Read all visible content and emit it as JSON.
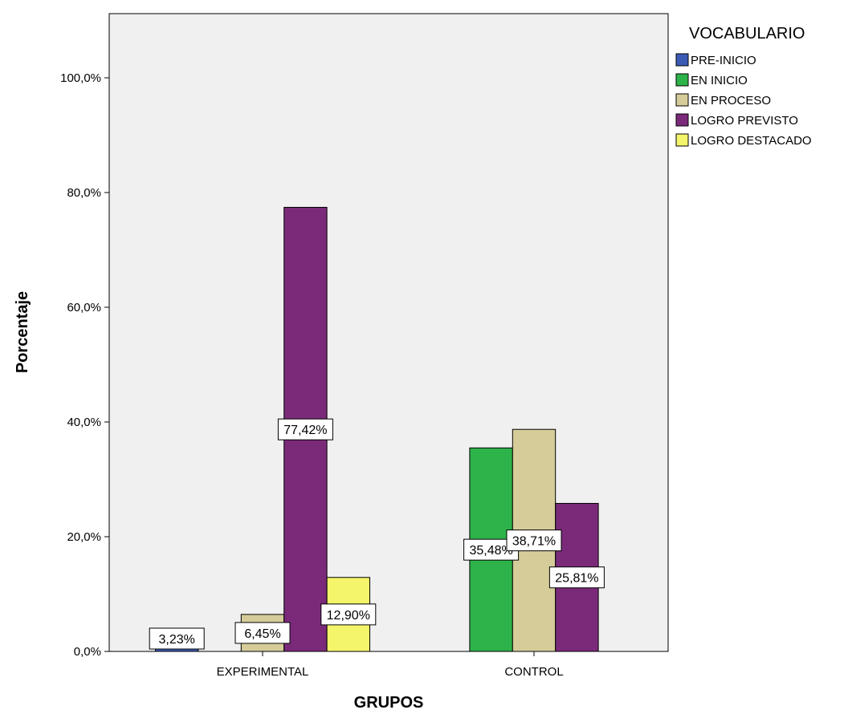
{
  "chart_data": {
    "type": "bar",
    "categories": [
      "EXPERIMENTAL",
      "CONTROL"
    ],
    "xlabel": "GRUPOS",
    "ylabel": "Porcentaje",
    "ylim": [
      0,
      100
    ],
    "yticks": [
      "0,0%",
      "20,0%",
      "40,0%",
      "60,0%",
      "80,0%",
      "100,0%"
    ],
    "grid": false,
    "legend_title": "VOCABULARIO",
    "legend_position": "top-right",
    "series": [
      {
        "name": "PRE-INICIO",
        "color": "#3b5bb5",
        "values": [
          3.23,
          0
        ],
        "labels": [
          "3,23%",
          ""
        ]
      },
      {
        "name": "EN INICIO",
        "color": "#2db34a",
        "values": [
          0,
          35.48
        ],
        "labels": [
          "",
          "35,48%"
        ]
      },
      {
        "name": "EN PROCESO",
        "color": "#d5cc9a",
        "values": [
          6.45,
          38.71
        ],
        "labels": [
          "6,45%",
          "38,71%"
        ]
      },
      {
        "name": "LOGRO PREVISTO",
        "color": "#7b2a7a",
        "values": [
          77.42,
          25.81
        ],
        "labels": [
          "77,42%",
          "25,81%"
        ]
      },
      {
        "name": "LOGRO DESTACADO",
        "color": "#f5f56b",
        "values": [
          12.9,
          0
        ],
        "labels": [
          "12,90%",
          ""
        ]
      }
    ]
  }
}
